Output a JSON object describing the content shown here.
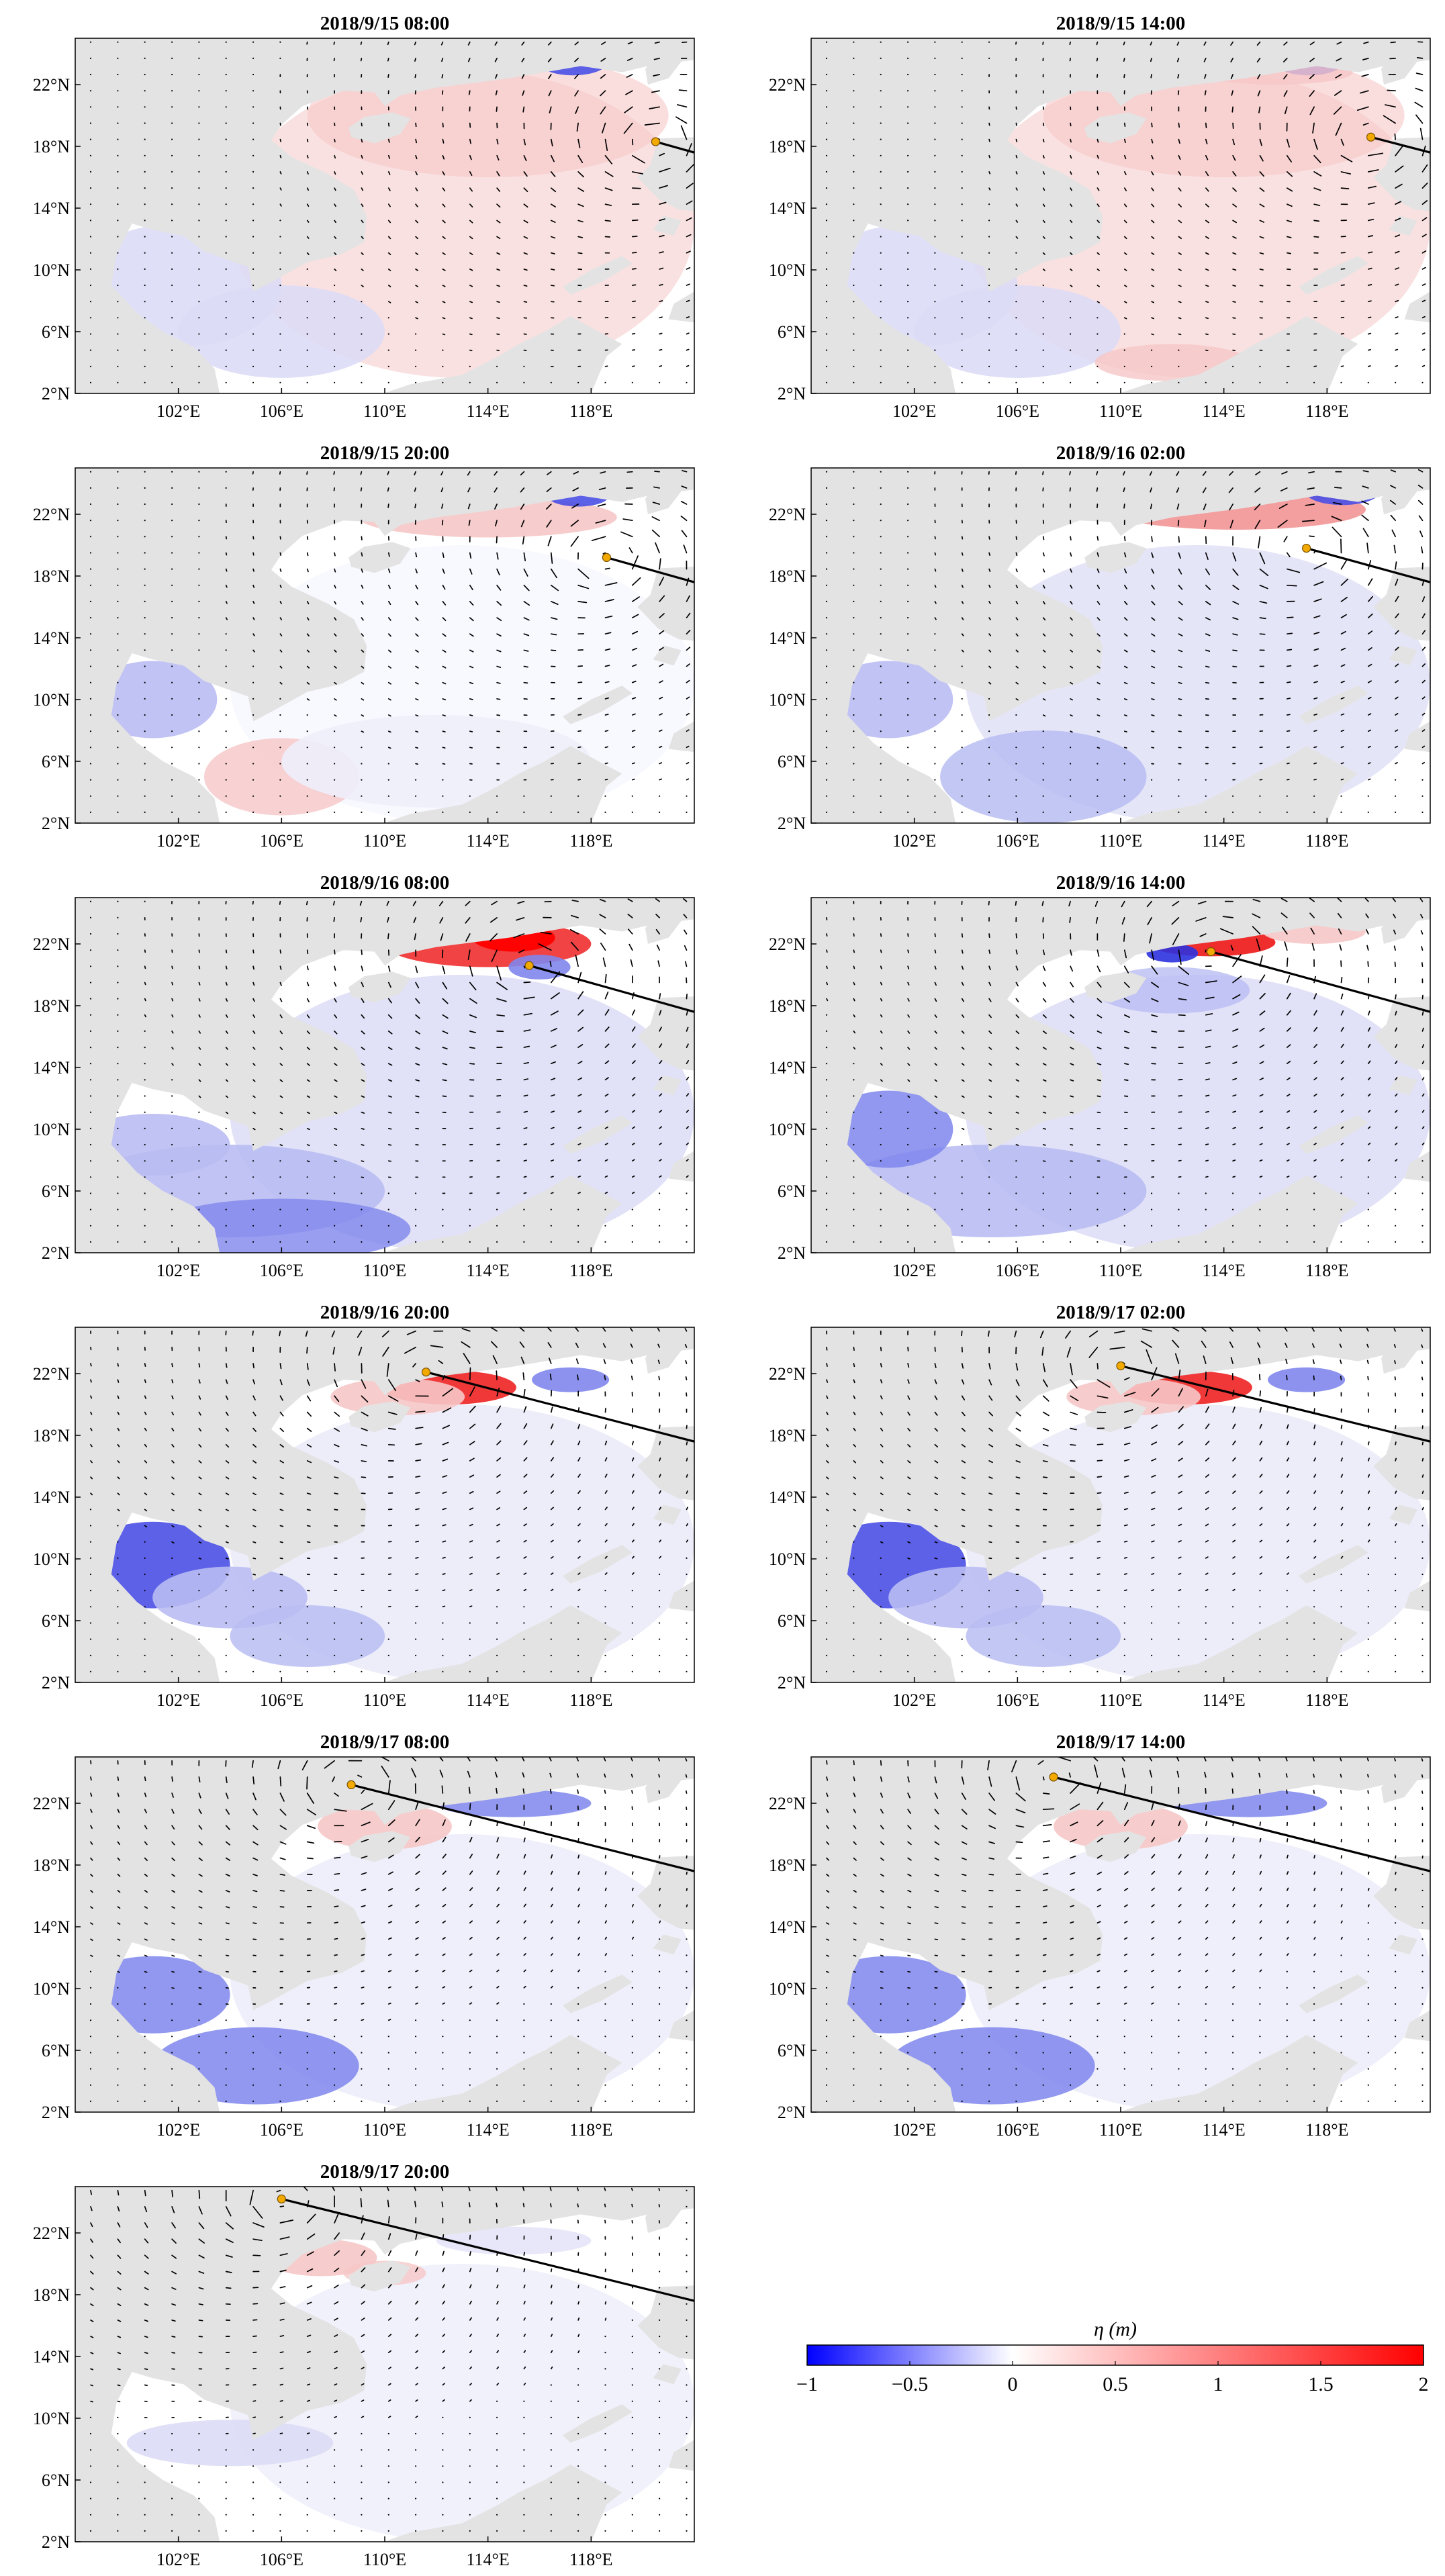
{
  "figure": {
    "panels": [
      {
        "title": "2018/9/15 08:00",
        "typhoon": {
          "lon": 120.5,
          "lat": 18.3
        },
        "track": [
          [
            122.0,
            17.6
          ],
          [
            120.5,
            18.3
          ]
        ],
        "pattern": "early1"
      },
      {
        "title": "2018/9/15 14:00",
        "typhoon": {
          "lon": 119.7,
          "lat": 18.6
        },
        "track": [
          [
            122.0,
            17.6
          ],
          [
            119.7,
            18.6
          ]
        ],
        "pattern": "early2"
      },
      {
        "title": "2018/9/15 20:00",
        "typhoon": {
          "lon": 118.6,
          "lat": 19.2
        },
        "track": [
          [
            122.0,
            17.6
          ],
          [
            118.6,
            19.2
          ]
        ],
        "pattern": "early3"
      },
      {
        "title": "2018/9/16 02:00",
        "typhoon": {
          "lon": 117.2,
          "lat": 19.8
        },
        "track": [
          [
            122.0,
            17.6
          ],
          [
            117.2,
            19.8
          ]
        ],
        "pattern": "mid1"
      },
      {
        "title": "2018/9/16 08:00",
        "typhoon": {
          "lon": 115.6,
          "lat": 20.6
        },
        "track": [
          [
            122.0,
            17.6
          ],
          [
            115.6,
            20.6
          ]
        ],
        "pattern": "mid2"
      },
      {
        "title": "2018/9/16 14:00",
        "typhoon": {
          "lon": 113.5,
          "lat": 21.5
        },
        "track": [
          [
            122.0,
            17.6
          ],
          [
            113.5,
            21.5
          ]
        ],
        "pattern": "mid3"
      },
      {
        "title": "2018/9/16 20:00",
        "typhoon": {
          "lon": 111.6,
          "lat": 22.1
        },
        "track": [
          [
            122.0,
            17.6
          ],
          [
            111.6,
            22.1
          ]
        ],
        "pattern": "late1"
      },
      {
        "title": "2018/9/17 02:00",
        "typhoon": {
          "lon": 110.0,
          "lat": 22.5
        },
        "track": [
          [
            122.0,
            17.6
          ],
          [
            110.0,
            22.5
          ]
        ],
        "pattern": "late2"
      },
      {
        "title": "2018/9/17 08:00",
        "typhoon": {
          "lon": 108.7,
          "lat": 23.2
        },
        "track": [
          [
            122.0,
            17.6
          ],
          [
            108.7,
            23.2
          ]
        ],
        "pattern": "late3"
      },
      {
        "title": "2018/9/17 14:00",
        "typhoon": {
          "lon": 107.4,
          "lat": 23.7
        },
        "track": [
          [
            122.0,
            17.6
          ],
          [
            107.4,
            23.7
          ]
        ],
        "pattern": "late3"
      },
      {
        "title": "2018/9/17 20:00",
        "typhoon": {
          "lon": 106.0,
          "lat": 24.2
        },
        "track": [
          [
            122.0,
            17.6
          ],
          [
            106.0,
            24.2
          ]
        ],
        "pattern": "late4"
      }
    ],
    "axes": {
      "lon_range": [
        98,
        122
      ],
      "lat_range": [
        2,
        25
      ],
      "lon_ticks": [
        102,
        106,
        110,
        114,
        118
      ],
      "lon_tick_labels": [
        "102°E",
        "106°E",
        "110°E",
        "114°E",
        "118°E"
      ],
      "lat_ticks": [
        2,
        6,
        10,
        14,
        18,
        22
      ],
      "lat_tick_labels": [
        "2°N",
        "6°N",
        "10°N",
        "14°N",
        "18°N",
        "22°N"
      ]
    },
    "colorbar": {
      "title": "η (m)",
      "range": [
        -1,
        2
      ],
      "ticks": [
        -1,
        -0.5,
        0,
        0.5,
        1,
        1.5,
        2
      ],
      "tick_labels": [
        "−1",
        "−0.5",
        "0",
        "0.5",
        "1",
        "1.5",
        "2"
      ],
      "low_color": "#0000ff",
      "mid_color": "#ffffff",
      "high_color": "#ff0000"
    },
    "colors": {
      "land": "#e3e3e3",
      "ocean_neutral": "#ffffff",
      "track": "#000000",
      "typhoon_marker": "#f2a900",
      "vectors": "#000000"
    }
  }
}
